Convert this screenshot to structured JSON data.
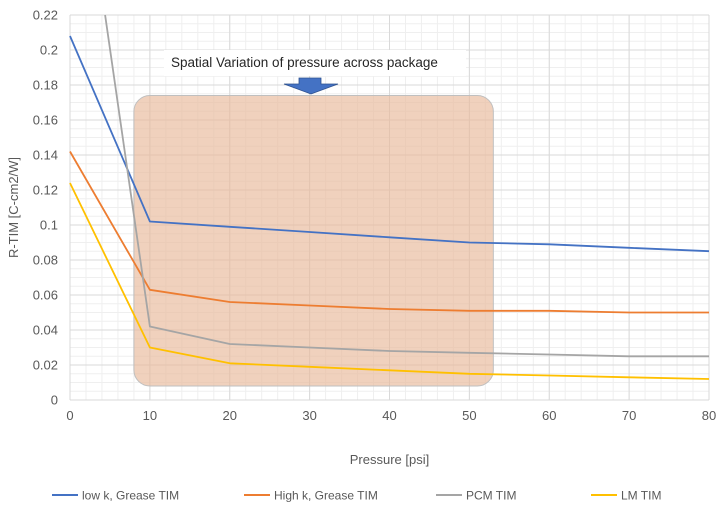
{
  "chart_data": {
    "type": "line",
    "title": "",
    "xlabel": "Pressure [psi]",
    "ylabel": "R-TIM [C-cm2/W]",
    "xlim": [
      0,
      80
    ],
    "ylim": [
      0,
      0.22
    ],
    "xticks": [
      0,
      10,
      20,
      30,
      40,
      50,
      60,
      70,
      80
    ],
    "yticks": [
      0,
      0.02,
      0.04,
      0.06,
      0.08,
      0.1,
      0.12,
      0.14,
      0.16,
      0.18,
      0.2,
      0.22
    ],
    "ytick_labels": [
      "0",
      "0.02",
      "0.04",
      "0.06",
      "0.08",
      "0.1",
      "0.12",
      "0.14",
      "0.16",
      "0.18",
      "0.2",
      "0.22"
    ],
    "grid": true,
    "minor_grid": true,
    "legend_position": "bottom",
    "annotation": {
      "text": "Spatial  Variation of pressure across package",
      "region_x_range": [
        8,
        53
      ],
      "region_y_range": [
        0.008,
        0.174
      ],
      "region_color": "#e8b89a",
      "arrow_color": "#4472c4"
    },
    "series": [
      {
        "name": "low k, Grease TIM",
        "color": "#4472c4",
        "x": [
          0,
          10,
          20,
          30,
          40,
          50,
          60,
          70,
          80
        ],
        "y": [
          0.208,
          0.102,
          0.099,
          0.096,
          0.093,
          0.09,
          0.089,
          0.087,
          0.085
        ]
      },
      {
        "name": "High k, Grease TIM",
        "color": "#ed7d31",
        "x": [
          0,
          10,
          20,
          30,
          40,
          50,
          60,
          70,
          80
        ],
        "y": [
          0.142,
          0.063,
          0.056,
          0.054,
          0.052,
          0.051,
          0.051,
          0.05,
          0.05
        ]
      },
      {
        "name": "PCM TIM",
        "color": "#a5a5a5",
        "x": [
          4.4,
          10,
          20,
          30,
          40,
          50,
          60,
          70,
          80
        ],
        "y": [
          0.22,
          0.042,
          0.032,
          0.03,
          0.028,
          0.027,
          0.026,
          0.025,
          0.025
        ]
      },
      {
        "name": "LM TIM",
        "color": "#ffc000",
        "x": [
          0,
          10,
          20,
          30,
          40,
          50,
          60,
          70,
          80
        ],
        "y": [
          0.124,
          0.03,
          0.021,
          0.019,
          0.017,
          0.015,
          0.014,
          0.013,
          0.012
        ]
      }
    ]
  }
}
